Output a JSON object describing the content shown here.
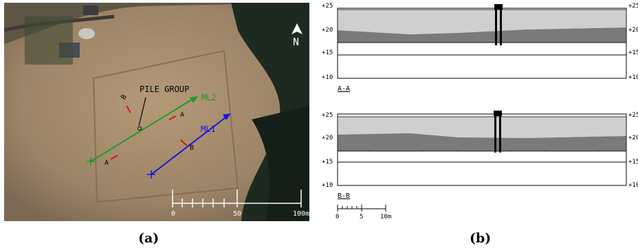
{
  "figure": {
    "panel_a": {
      "caption": "(a)",
      "north_label": "N",
      "pile_group_label": "PILE GROUP",
      "lines": [
        {
          "label": "ML2",
          "color": "#1a9a2a"
        },
        {
          "label": "ML1",
          "color": "#1515e0"
        }
      ],
      "section_markers": [
        "B",
        "A",
        "A",
        "B"
      ],
      "scale_ticks": [
        "0",
        "50",
        "100m"
      ]
    },
    "panel_b": {
      "caption": "(b)",
      "sections": [
        {
          "name": "A-A",
          "elevation_ticks": [
            "+25",
            "+20",
            "+15",
            "+10"
          ]
        },
        {
          "name": "B-B",
          "elevation_ticks": [
            "+25",
            "+20",
            "+15",
            "+10"
          ]
        }
      ],
      "scale_ticks": [
        "0",
        "5",
        "10m"
      ]
    }
  }
}
